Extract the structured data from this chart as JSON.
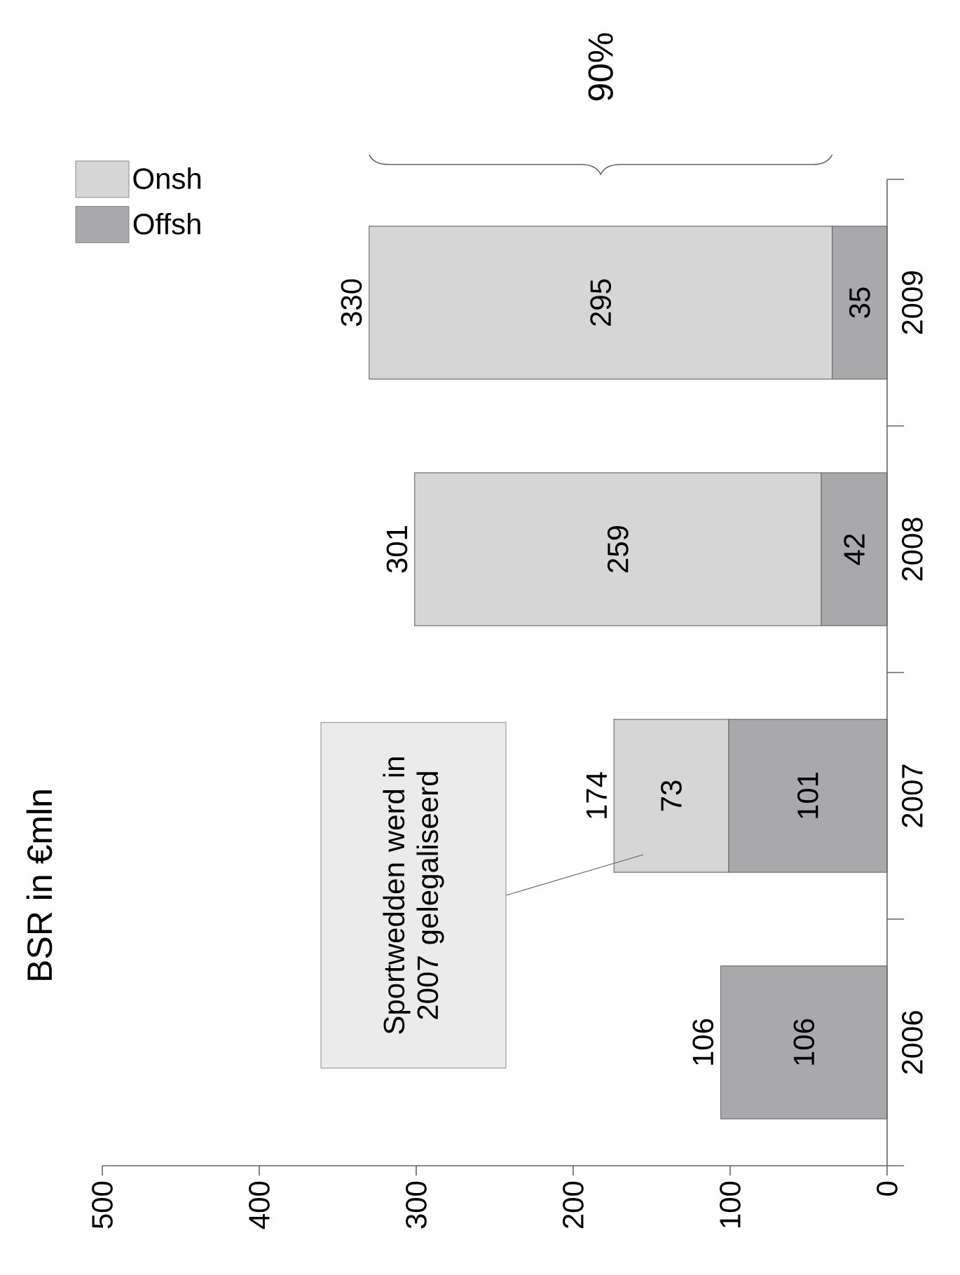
{
  "chart_data": {
    "type": "bar",
    "orientation": "horizontal",
    "stacked": true,
    "title": "BSR in €mln",
    "categories": [
      "2009",
      "2008",
      "2007",
      "2006"
    ],
    "series": [
      {
        "name": "Offsh",
        "color": "#a9a9ab",
        "values": [
          35,
          42,
          101,
          106
        ]
      },
      {
        "name": "Onsh",
        "color": "#d6d6d6",
        "values": [
          295,
          259,
          73,
          null
        ]
      }
    ],
    "totals": [
      "330",
      "301",
      "174",
      "106"
    ],
    "data_labels": true,
    "xlim": [
      500,
      0
    ],
    "xticks": [
      500,
      400,
      300,
      200,
      100,
      0
    ],
    "legend": "top left",
    "annotations": [
      "Sportwedden werd in 2007 gelegaliseerd",
      "90%"
    ]
  }
}
